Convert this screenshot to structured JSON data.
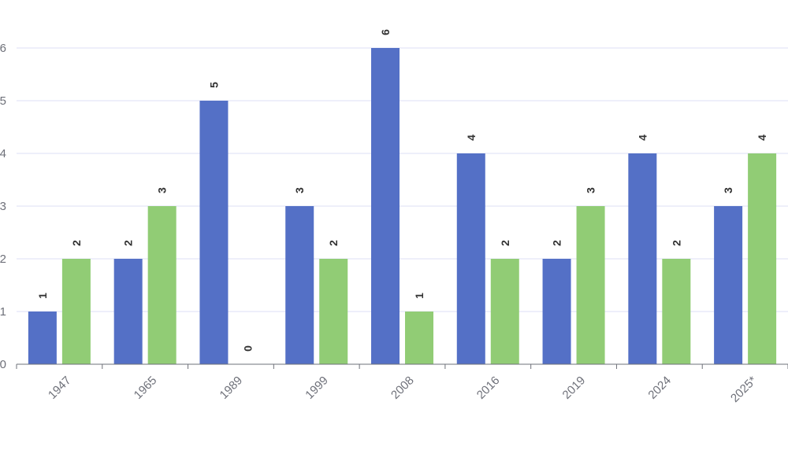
{
  "chart_data": {
    "type": "bar",
    "categories": [
      "1947",
      "1965",
      "1989",
      "1999",
      "2008",
      "2016",
      "2019",
      "2024",
      "2025*"
    ],
    "series": [
      {
        "values": [
          1,
          2,
          5,
          3,
          6,
          4,
          2,
          4,
          3
        ],
        "color": "#5470c6"
      },
      {
        "values": [
          2,
          3,
          0,
          2,
          1,
          2,
          3,
          2,
          4
        ],
        "color": "#91cc75"
      }
    ],
    "ylim": [
      0,
      6
    ],
    "yticks": [
      "0",
      "1",
      "2",
      "3",
      "4",
      "5",
      "6"
    ],
    "grid": true,
    "data_labels": true,
    "xlabel": "",
    "ylabel": "",
    "title": ""
  }
}
